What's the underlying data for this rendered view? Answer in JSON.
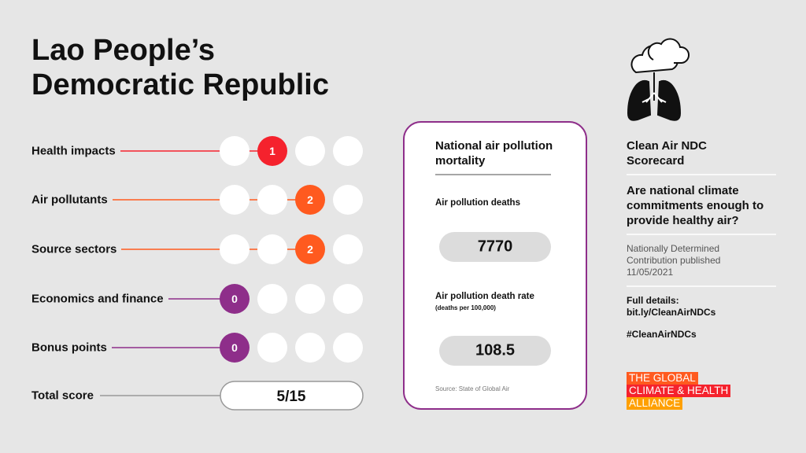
{
  "title": "Lao People’s Democratic Republic",
  "scores": {
    "rows": [
      {
        "label": "Health impacts",
        "score": 1,
        "color": "#f5222d"
      },
      {
        "label": "Air pollutants",
        "score": 2,
        "color": "#ff5a1f"
      },
      {
        "label": "Source sectors",
        "score": 2,
        "color": "#ff5a1f"
      },
      {
        "label": "Economics and finance",
        "score": 0,
        "color": "#8e2e8a"
      },
      {
        "label": "Bonus points",
        "score": 0,
        "color": "#8e2e8a"
      }
    ],
    "total": {
      "label": "Total score",
      "value": "5/15"
    }
  },
  "mortality": {
    "title": "National air pollution mortality",
    "deaths": {
      "label": "Air pollution deaths",
      "value": 7770
    },
    "rate": {
      "label": "Air pollution death rate",
      "unit": "(deaths per 100,000)",
      "value": 108.5
    },
    "source": "Source: State of Global Air"
  },
  "sidebar": {
    "title": "Clean Air NDC Scorecard",
    "question": "Are national climate commitments enough to provide healthy air?",
    "published": "Nationally Determined Contribution published 11/05/2021",
    "details_label": "Full details:",
    "link": "bit.ly/CleanAirNDCs",
    "hashtag": "#CleanAirNDCs",
    "logo": [
      "THE GLOBAL",
      "CLIMATE & HEALTH",
      "ALLIANCE"
    ]
  }
}
